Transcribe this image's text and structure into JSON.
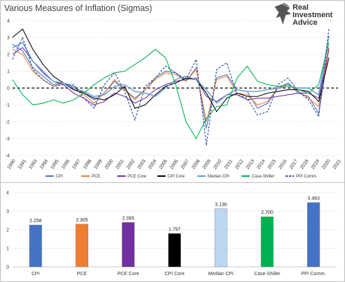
{
  "title": "Various Measures of Inflation (Sigmas)",
  "logo": {
    "line1": "Real",
    "line2": "Investment",
    "line3": "Advice"
  },
  "colors": {
    "CPI": "#4472c4",
    "PCE": "#ed7d31",
    "PCE Core": "#7030a0",
    "CPI Core": "#000000",
    "Median CPI": "#5b9bd5",
    "Case-Shiller": "#00b050",
    "PPI Comm.": "#1f3f8f"
  },
  "chart_data": [
    {
      "type": "line",
      "title": "Various Measures of Inflation (Sigmas)",
      "xlabel": "",
      "ylabel": "",
      "ylim": [
        -4,
        4
      ],
      "yticks": [
        "-4",
        "-3",
        "-2",
        "-1",
        "0",
        "1",
        "2",
        "3",
        "4"
      ],
      "xticks": [
        "1990",
        "1991",
        "1993",
        "1994",
        "1995",
        "1996",
        "1997",
        "1998",
        "1999",
        "2000",
        "2001",
        "2002",
        "2003",
        "2004",
        "2005",
        "2006",
        "2007",
        "2008",
        "2009",
        "2010",
        "2011",
        "2012",
        "2013",
        "2014",
        "2015",
        "2016",
        "2017",
        "2018",
        "2019",
        "2020",
        "2021"
      ],
      "grid": "horizontal dashed",
      "legend_position": "bottom",
      "x": [
        1990,
        1991,
        1992,
        1993,
        1994,
        1995,
        1996,
        1997,
        1998,
        1999,
        2000,
        2001,
        2002,
        2003,
        2004,
        2005,
        2006,
        2007,
        2008,
        2009,
        2010,
        2011,
        2012,
        2013,
        2014,
        2015,
        2016,
        2017,
        2018,
        2019,
        2020,
        2021
      ],
      "series": [
        {
          "name": "CPI",
          "values": [
            2.6,
            2.2,
            1.2,
            0.7,
            0.2,
            0.3,
            0.1,
            -0.3,
            -0.7,
            -0.3,
            0.4,
            -0.1,
            -0.6,
            -0.1,
            0.6,
            1.0,
            0.9,
            0.4,
            1.2,
            -2.4,
            0.6,
            0.8,
            -0.1,
            -0.2,
            -1.2,
            -0.9,
            0.0,
            0.3,
            -0.3,
            -0.5,
            -1.5,
            2.3
          ]
        },
        {
          "name": "PCE",
          "values": [
            2.3,
            2.0,
            1.0,
            0.5,
            0.1,
            0.3,
            0.0,
            -0.4,
            -0.9,
            -0.3,
            0.5,
            -0.1,
            -0.7,
            -0.1,
            0.5,
            0.9,
            0.8,
            0.4,
            1.1,
            -2.0,
            0.5,
            0.7,
            -0.3,
            -0.4,
            -1.0,
            -0.8,
            0.0,
            0.2,
            -0.2,
            -0.6,
            -1.1,
            2.3
          ]
        },
        {
          "name": "PCE Core",
          "values": [
            2.0,
            2.4,
            1.6,
            0.9,
            0.4,
            0.2,
            -0.3,
            -0.6,
            -1.0,
            -0.8,
            -0.3,
            -0.5,
            -0.9,
            -0.6,
            -0.1,
            0.2,
            0.4,
            0.5,
            0.6,
            -0.5,
            -0.8,
            -0.4,
            -0.4,
            -0.7,
            -0.6,
            -0.6,
            -0.5,
            -0.4,
            -0.3,
            -0.3,
            -0.6,
            2.4
          ]
        },
        {
          "name": "CPI Core",
          "values": [
            3.0,
            3.5,
            2.3,
            1.4,
            0.7,
            0.3,
            -0.1,
            -0.3,
            -0.6,
            -0.7,
            -0.4,
            0.1,
            -1.2,
            -1.0,
            -0.4,
            0.1,
            0.3,
            0.6,
            0.5,
            -0.3,
            -1.4,
            -0.6,
            -0.3,
            -0.5,
            -0.5,
            -0.3,
            -0.2,
            -0.1,
            -0.1,
            -0.2,
            -0.8,
            1.8
          ]
        },
        {
          "name": "Median CPI",
          "values": [
            2.4,
            2.7,
            1.6,
            1.0,
            0.4,
            0.3,
            0.0,
            -0.2,
            -0.5,
            -0.4,
            0.1,
            0.2,
            -0.2,
            -0.3,
            -0.5,
            0.0,
            0.5,
            0.7,
            0.5,
            -0.1,
            -0.9,
            -0.4,
            -0.1,
            -0.2,
            -0.2,
            -0.1,
            0.0,
            0.1,
            0.0,
            0.0,
            -0.4,
            3.1
          ]
        },
        {
          "name": "Case-Shiller",
          "values": [
            0.5,
            -0.4,
            -1.0,
            -0.9,
            -0.7,
            -0.9,
            -0.7,
            -0.3,
            0.2,
            0.6,
            0.9,
            1.0,
            1.4,
            1.8,
            2.3,
            1.8,
            0.2,
            -2.0,
            -3.0,
            -1.8,
            -1.1,
            -1.0,
            0.6,
            1.3,
            0.4,
            0.2,
            0.1,
            0.2,
            -0.1,
            -0.3,
            0.2,
            2.7
          ]
        },
        {
          "name": "PPI Comm.",
          "values": [
            1.7,
            3.0,
            1.1,
            0.5,
            0.1,
            0.2,
            0.2,
            -0.6,
            -1.2,
            0.2,
            0.9,
            -0.2,
            -1.9,
            0.1,
            0.6,
            1.3,
            0.9,
            0.5,
            1.7,
            -3.4,
            1.1,
            1.5,
            -0.4,
            -0.6,
            -1.6,
            -1.4,
            0.2,
            0.6,
            -0.2,
            -0.7,
            -1.7,
            3.5
          ]
        }
      ]
    },
    {
      "type": "bar",
      "categories": [
        "CPI",
        "PCE",
        "PCE Core",
        "CPI Core",
        "Median CPI",
        "Case-Shiller",
        "PPI Comm."
      ],
      "values": [
        2.258,
        2.305,
        2.395,
        1.797,
        3.136,
        2.7,
        3.463
      ],
      "value_labels": [
        "2.258",
        "2.305",
        "2.395",
        "1.797",
        "3.136",
        "2.700",
        "3.463"
      ],
      "colors": [
        "#4472c4",
        "#ed7d31",
        "#7030a0",
        "#000000",
        "#bdd7ee",
        "#00b050",
        "#4472c4"
      ],
      "ylim": [
        0,
        4
      ],
      "yticks": [
        "0",
        "1",
        "2",
        "3",
        "4"
      ],
      "grid": "horizontal",
      "title": "",
      "xlabel": "",
      "ylabel": ""
    }
  ]
}
